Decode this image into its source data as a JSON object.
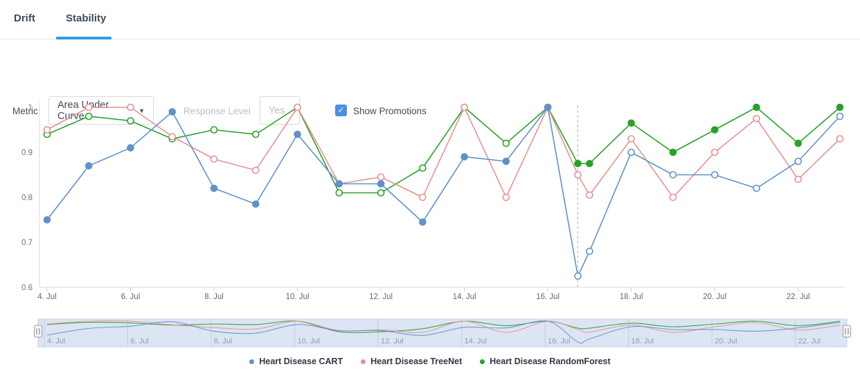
{
  "tabs": {
    "drift": "Drift",
    "stability": "Stability",
    "active": "Stability"
  },
  "controls": {
    "metric_label": "Metric",
    "metric_value": "Area Under Curve",
    "response_level_label": "Response Level",
    "response_level_value": "Yes",
    "response_level_disabled": true,
    "show_promotions_label": "Show Promotions",
    "show_promotions_checked": true
  },
  "colors": {
    "cart_blue": "#6191c9",
    "treenet_red": "#e79191",
    "randomforest_green": "#28a228",
    "tab_underline": "#2e9be5",
    "checkbox": "#4a8fe4",
    "axis_line": "#d9d9d9",
    "promotion_line": "#b0b0b0",
    "navigator_bg": "#dde4f4",
    "navigator_border": "#c4cfe9",
    "navigator_grid": "#c2cde4"
  },
  "chart_data": {
    "type": "line",
    "title": "",
    "xlabel": "",
    "ylabel": "",
    "ylim": [
      0.6,
      1.0
    ],
    "y_ticks": [
      "1",
      "0.9",
      "0.8",
      "0.7",
      "0.6"
    ],
    "y_tick_values": [
      1.0,
      0.9,
      0.8,
      0.7,
      0.6
    ],
    "x_ticks": [
      4,
      6,
      8,
      10,
      12,
      14,
      16,
      18,
      20,
      22
    ],
    "x_tick_labels": [
      "4. Jul",
      "6. Jul",
      "8. Jul",
      "10. Jul",
      "12. Jul",
      "14. Jul",
      "16. Jul",
      "18. Jul",
      "20. Jul",
      "22. Jul"
    ],
    "promotion_line_x": 16.72,
    "grid": false,
    "legend_position": "bottom",
    "x": [
      4,
      5,
      6,
      7,
      8,
      9,
      10,
      11,
      12,
      13,
      14,
      15,
      16,
      16.72,
      17,
      18,
      19,
      20,
      21,
      22,
      23
    ],
    "series": [
      {
        "name": "Heart Disease CART",
        "color": "#6191c9",
        "values": [
          0.75,
          0.87,
          0.91,
          0.99,
          0.82,
          0.785,
          0.94,
          0.83,
          0.83,
          0.745,
          0.89,
          0.88,
          1.0,
          0.625,
          0.68,
          0.9,
          0.85,
          0.85,
          0.82,
          0.88,
          0.98
        ],
        "marker_filled": [
          true,
          true,
          true,
          true,
          true,
          true,
          true,
          true,
          true,
          true,
          true,
          true,
          true,
          false,
          false,
          false,
          false,
          false,
          false,
          false,
          false
        ]
      },
      {
        "name": "Heart Disease TreeNet",
        "color": "#e79191",
        "values": [
          0.95,
          1.0,
          1.0,
          0.935,
          0.885,
          0.86,
          1.0,
          0.83,
          0.845,
          0.8,
          1.0,
          0.8,
          1.0,
          0.85,
          0.805,
          0.93,
          0.8,
          0.9,
          0.975,
          0.84,
          0.93
        ],
        "marker_filled": [
          false,
          false,
          false,
          false,
          false,
          false,
          false,
          false,
          false,
          false,
          false,
          false,
          false,
          false,
          false,
          false,
          false,
          false,
          false,
          false,
          false
        ]
      },
      {
        "name": "Heart Disease RandomForest",
        "color": "#28a228",
        "values": [
          0.94,
          0.98,
          0.97,
          0.93,
          0.95,
          0.94,
          1.0,
          0.81,
          0.81,
          0.865,
          1.0,
          0.92,
          1.0,
          0.875,
          0.875,
          0.965,
          0.9,
          0.95,
          1.0,
          0.92,
          1.0
        ],
        "marker_filled": [
          false,
          false,
          false,
          false,
          false,
          false,
          false,
          false,
          false,
          false,
          false,
          false,
          false,
          true,
          true,
          true,
          true,
          true,
          true,
          true,
          true
        ]
      }
    ],
    "navigator": {
      "x_tick_labels": [
        "4. Jul",
        "6. Jul",
        "8. Jul",
        "10. Jul",
        "12. Jul",
        "14. Jul",
        "16. Jul",
        "18. Jul",
        "20. Jul",
        "22. Jul"
      ],
      "selection": "full range"
    }
  }
}
